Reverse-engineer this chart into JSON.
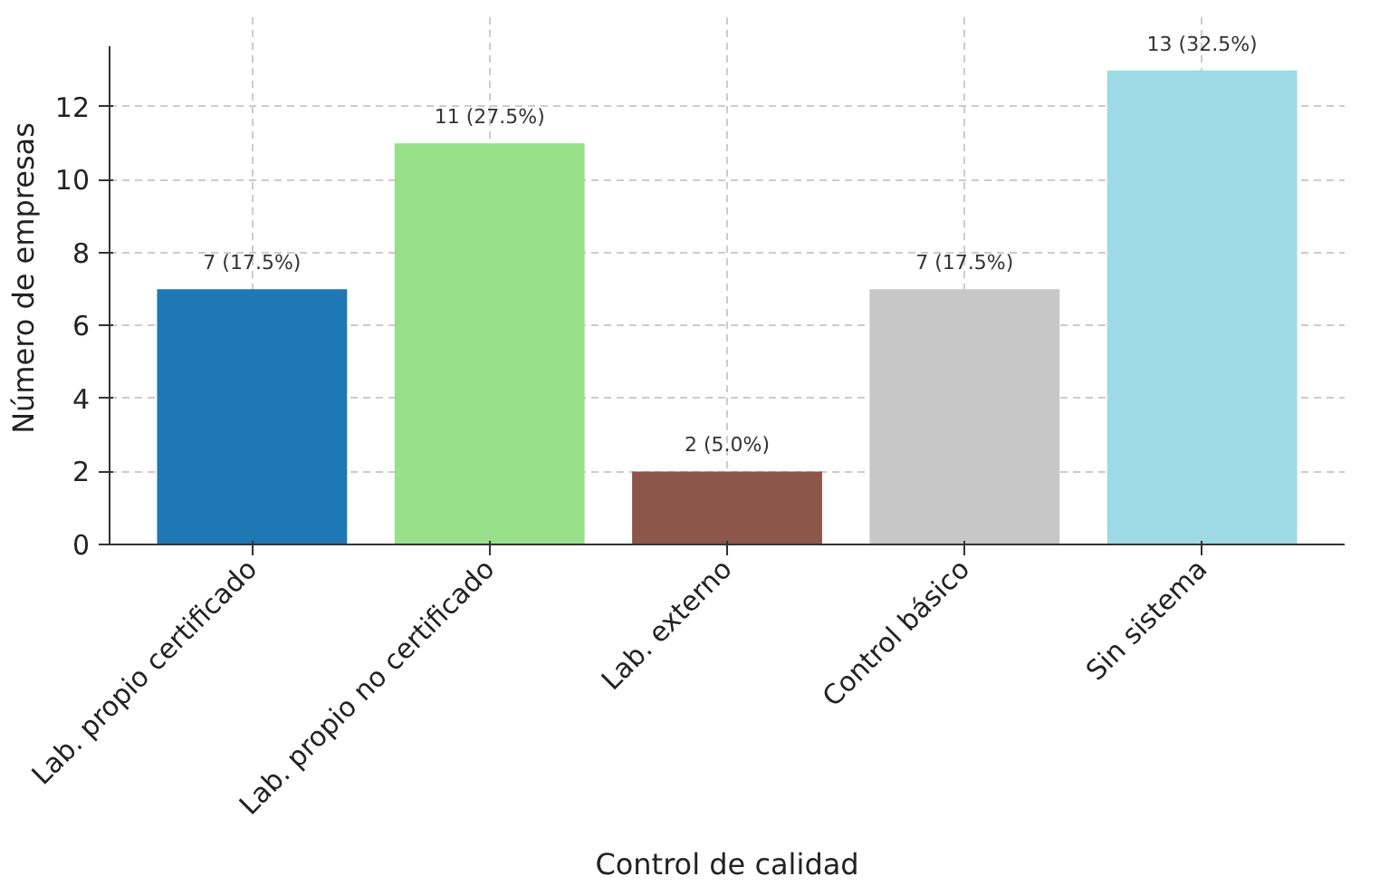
{
  "chart_data": {
    "type": "bar",
    "xlabel": "Control de calidad",
    "ylabel": "Número de empresas",
    "categories": [
      "Lab. propio certificado",
      "Lab. propio no certificado",
      "Lab. externo",
      "Control básico",
      "Sin sistema"
    ],
    "values": [
      7,
      11,
      2,
      7,
      13
    ],
    "colors": [
      "#1f77b4",
      "#98df8a",
      "#8c564b",
      "#c7c7c7",
      "#9edae5"
    ],
    "value_labels": [
      "7 (17.5%)",
      "11 (27.5%)",
      "2 (5.0%)",
      "7 (17.5%)",
      "13 (32.5%)"
    ],
    "ylim": [
      0,
      13.65
    ],
    "yticks": [
      0,
      2,
      4,
      6,
      8,
      10,
      12
    ],
    "grid": true
  }
}
